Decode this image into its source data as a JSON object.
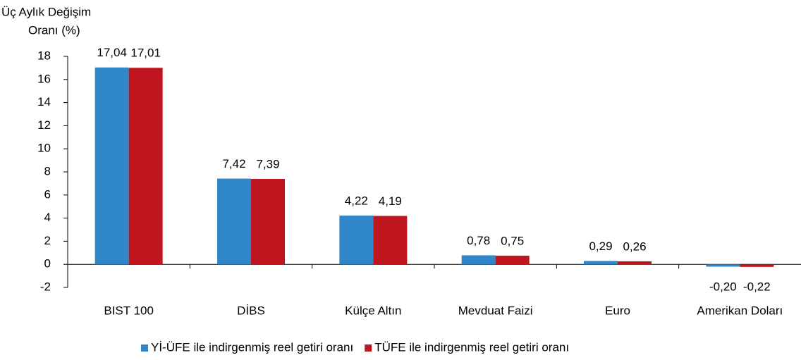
{
  "chart_data": {
    "type": "bar",
    "y_label": [
      "Üç Aylık Değişim",
      "Oranı (%)"
    ],
    "categories": [
      "BIST 100",
      "DİBS",
      "Külçe Altın",
      "Mevduat Faizi",
      "Euro",
      "Amerikan Doları"
    ],
    "series": [
      {
        "name": "Yİ-ÜFE ile indirgenmiş reel getiri oranı",
        "color": "#2f86c9",
        "values": [
          17.04,
          7.42,
          4.22,
          0.78,
          0.29,
          -0.2
        ],
        "value_labels": [
          "17,04",
          "7,42",
          "4,22",
          "0,78",
          "0,29",
          "-0,20"
        ]
      },
      {
        "name": "TÜFE ile indirgenmiş reel getiri oranı",
        "color": "#be151e",
        "values": [
          17.01,
          7.39,
          4.19,
          0.75,
          0.26,
          -0.22
        ],
        "value_labels": [
          "17,01",
          "7,39",
          "4,19",
          "0,75",
          "0,26",
          "-0,22"
        ]
      }
    ],
    "ylim": [
      -2,
      18
    ],
    "yticks": [
      -2,
      0,
      2,
      4,
      6,
      8,
      10,
      12,
      14,
      16,
      18
    ],
    "grid": false,
    "legend": "bottom"
  }
}
